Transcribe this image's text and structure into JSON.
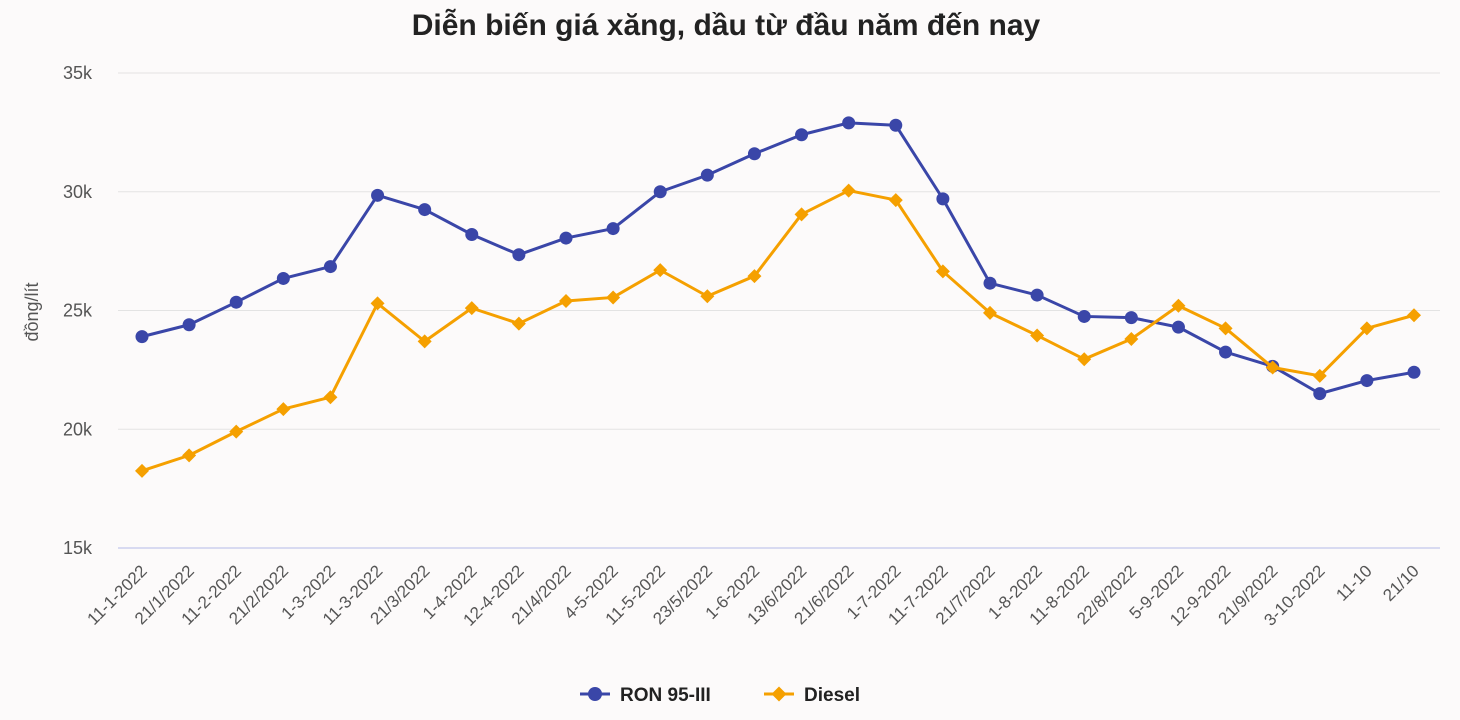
{
  "chart_data": {
    "type": "line",
    "title": "Diễn biến giá xăng, dầu từ đầu năm đến nay",
    "xlabel": "",
    "ylabel": "đồng/lít",
    "ylim": [
      15000,
      35000
    ],
    "y_ticks": [
      {
        "value": 15000,
        "label": "15k"
      },
      {
        "value": 20000,
        "label": "20k"
      },
      {
        "value": 25000,
        "label": "25k"
      },
      {
        "value": 30000,
        "label": "30k"
      },
      {
        "value": 35000,
        "label": "35k"
      }
    ],
    "grid": true,
    "legend_position": "bottom",
    "categories": [
      "11-1-2022",
      "21/1/2022",
      "11-2-2022",
      "21/2/2022",
      "1-3-2022",
      "11-3-2022",
      "21/3/2022",
      "1-4-2022",
      "12-4-2022",
      "21/4/2022",
      "4-5-2022",
      "11-5-2022",
      "23/5/2022",
      "1-6-2022",
      "13/6/2022",
      "21/6/2022",
      "1-7-2022",
      "11-7-2022",
      "21/7/2022",
      "1-8-2022",
      "11-8-2022",
      "22/8/2022",
      "5-9-2022",
      "12-9-2022",
      "21/9/2022",
      "3-10-2022",
      "11-10",
      "21/10"
    ],
    "series": [
      {
        "name": "RON 95-III",
        "color": "#3a46a8",
        "marker": "circle",
        "values": [
          23900,
          24400,
          25350,
          26350,
          26850,
          29850,
          29250,
          28200,
          27350,
          28050,
          28450,
          30000,
          30700,
          31600,
          32400,
          32900,
          32800,
          29700,
          26150,
          25650,
          24750,
          24700,
          24300,
          23250,
          22650,
          21500,
          22050,
          22400
        ]
      },
      {
        "name": "Diesel",
        "color": "#f5a000",
        "marker": "diamond",
        "values": [
          18250,
          18900,
          19900,
          20850,
          21350,
          25300,
          23700,
          25100,
          24450,
          25400,
          25550,
          26700,
          25600,
          26450,
          29050,
          30050,
          29650,
          26650,
          24900,
          23950,
          22950,
          23800,
          25200,
          24250,
          22600,
          22250,
          24250,
          24800
        ]
      }
    ]
  }
}
